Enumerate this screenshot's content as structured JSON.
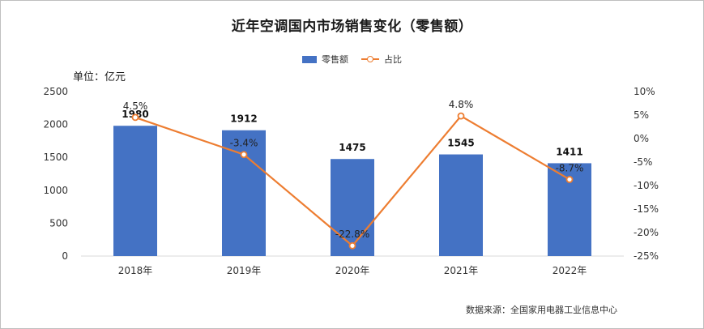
{
  "chart_data": {
    "type": "bar",
    "title": "近年空调国内市场销售变化（零售额）",
    "unit_label": "单位：亿元",
    "source": "数据来源：全国家用电器工业信息中心",
    "categories": [
      "2018年",
      "2019年",
      "2020年",
      "2021年",
      "2022年"
    ],
    "series": [
      {
        "name": "零售额",
        "type": "bar",
        "axis": "left",
        "color": "#4472C4",
        "values": [
          1980,
          1912,
          1475,
          1545,
          1411
        ],
        "labels": [
          "1980",
          "1912",
          "1475",
          "1545",
          "1411"
        ]
      },
      {
        "name": "占比",
        "type": "line",
        "axis": "right",
        "color": "#ED7D31",
        "values": [
          4.5,
          -3.4,
          -22.8,
          4.8,
          -8.7
        ],
        "labels": [
          "4.5%",
          "-3.4%",
          "-22.8%",
          "4.8%",
          "-8.7%"
        ]
      }
    ],
    "y_left": {
      "min": 0,
      "max": 2500,
      "ticks": [
        "0",
        "500",
        "1000",
        "1500",
        "2000",
        "2500"
      ]
    },
    "y_right": {
      "min": -25,
      "max": 10,
      "ticks": [
        "-25%",
        "-20%",
        "-15%",
        "-10%",
        "-5%",
        "0%",
        "5%",
        "10%"
      ]
    },
    "legend_position": "top",
    "grid": false
  }
}
